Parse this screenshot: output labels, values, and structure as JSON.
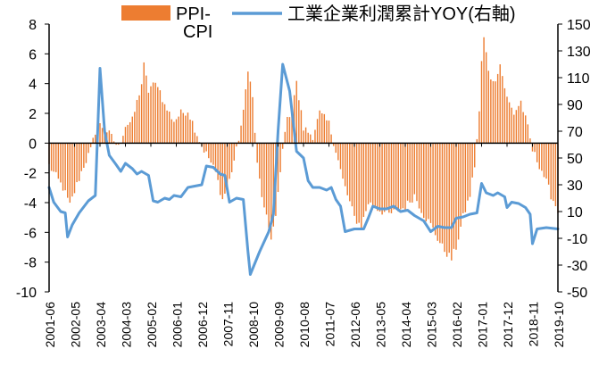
{
  "chart_data": {
    "type": "bar+line",
    "legend": {
      "position": "top",
      "bar_label_line1": "PPI-",
      "bar_label_line2": "CPI",
      "line_label": "工業企業利潤累計YOY(右軸)"
    },
    "left_axis": {
      "min": -10,
      "max": 8,
      "ticks": [
        -10,
        -8,
        -6,
        -4,
        -2,
        0,
        2,
        4,
        6,
        8
      ]
    },
    "right_axis": {
      "min": -50,
      "max": 150,
      "ticks": [
        -50,
        -30,
        -10,
        10,
        30,
        50,
        70,
        90,
        110,
        130,
        150
      ]
    },
    "x_tick_labels": [
      "2001-06",
      "2002-05",
      "2003-04",
      "2004-03",
      "2005-02",
      "2006-01",
      "2006-12",
      "2007-11",
      "2008-10",
      "2009-09",
      "2010-08",
      "2011-07",
      "2012-06",
      "2013-05",
      "2014-04",
      "2015-03",
      "2016-02",
      "2017-01",
      "2017-12",
      "2018-11",
      "2019-10"
    ],
    "x_range": [
      "2001-06",
      "2019-10"
    ],
    "grid": false,
    "colors": {
      "bar": "#ED7D31",
      "line": "#5B9BD5",
      "axis": "#000000"
    },
    "bar_series": {
      "name": "PPI-CPI",
      "anchors": [
        [
          "2001-06",
          -1.5
        ],
        [
          "2001-12",
          -3.0
        ],
        [
          "2002-03",
          -4.2
        ],
        [
          "2002-06",
          -2.8
        ],
        [
          "2002-09",
          -1.5
        ],
        [
          "2002-12",
          -0.5
        ],
        [
          "2003-02",
          0.8
        ],
        [
          "2003-04",
          1.2
        ],
        [
          "2003-06",
          1.0
        ],
        [
          "2003-09",
          0.4
        ],
        [
          "2003-12",
          -0.3
        ],
        [
          "2004-03",
          1.2
        ],
        [
          "2004-06",
          1.5
        ],
        [
          "2004-10",
          4.0
        ],
        [
          "2004-11",
          5.2
        ],
        [
          "2005-01",
          3.5
        ],
        [
          "2005-02",
          3.8
        ],
        [
          "2005-05",
          4.0
        ],
        [
          "2005-08",
          2.5
        ],
        [
          "2005-12",
          1.5
        ],
        [
          "2006-03",
          2.0
        ],
        [
          "2006-06",
          2.2
        ],
        [
          "2006-09",
          1.0
        ],
        [
          "2006-12",
          -0.2
        ],
        [
          "2007-03",
          -1.0
        ],
        [
          "2007-06",
          -2.0
        ],
        [
          "2007-09",
          -3.8
        ],
        [
          "2007-12",
          -2.5
        ],
        [
          "2008-03",
          -0.5
        ],
        [
          "2008-06",
          2.0
        ],
        [
          "2008-08",
          5.1
        ],
        [
          "2008-10",
          3.0
        ],
        [
          "2008-12",
          -1.5
        ],
        [
          "2009-03",
          -4.5
        ],
        [
          "2009-06",
          -6.3
        ],
        [
          "2009-08",
          -5.0
        ],
        [
          "2009-10",
          -2.0
        ],
        [
          "2009-12",
          1.0
        ],
        [
          "2010-03",
          2.5
        ],
        [
          "2010-05",
          4.0
        ],
        [
          "2010-08",
          1.0
        ],
        [
          "2010-12",
          0.5
        ],
        [
          "2011-03",
          2.0
        ],
        [
          "2011-07",
          1.3
        ],
        [
          "2011-10",
          -0.5
        ],
        [
          "2012-01",
          -2.5
        ],
        [
          "2012-06",
          -5.0
        ],
        [
          "2012-09",
          -5.6
        ],
        [
          "2012-12",
          -4.0
        ],
        [
          "2013-05",
          -4.5
        ],
        [
          "2013-09",
          -4.8
        ],
        [
          "2014-01",
          -4.5
        ],
        [
          "2014-04",
          -4.3
        ],
        [
          "2014-08",
          -3.5
        ],
        [
          "2014-12",
          -4.8
        ],
        [
          "2015-03",
          -5.5
        ],
        [
          "2015-08",
          -7.0
        ],
        [
          "2015-12",
          -7.8
        ],
        [
          "2016-02",
          -7.0
        ],
        [
          "2016-05",
          -5.0
        ],
        [
          "2016-08",
          -3.5
        ],
        [
          "2016-10",
          -1.5
        ],
        [
          "2016-12",
          2.0
        ],
        [
          "2017-01",
          5.5
        ],
        [
          "2017-02",
          7.0
        ],
        [
          "2017-04",
          5.0
        ],
        [
          "2017-06",
          4.0
        ],
        [
          "2017-09",
          5.3
        ],
        [
          "2017-12",
          3.0
        ],
        [
          "2018-03",
          2.0
        ],
        [
          "2018-06",
          2.8
        ],
        [
          "2018-09",
          1.0
        ],
        [
          "2018-11",
          -0.5
        ],
        [
          "2019-03",
          -1.8
        ],
        [
          "2019-07",
          -3.5
        ],
        [
          "2019-10",
          -4.5
        ]
      ]
    },
    "line_series": {
      "name": "工業企業利潤累計YOY",
      "axis": "right",
      "points": [
        [
          "2001-06",
          28
        ],
        [
          "2001-08",
          17
        ],
        [
          "2001-11",
          10
        ],
        [
          "2002-01",
          9
        ],
        [
          "2002-02",
          -9
        ],
        [
          "2002-04",
          0
        ],
        [
          "2002-07",
          9
        ],
        [
          "2002-11",
          18
        ],
        [
          "2003-02",
          22
        ],
        [
          "2003-04",
          117
        ],
        [
          "2003-06",
          70
        ],
        [
          "2003-08",
          52
        ],
        [
          "2003-11",
          45
        ],
        [
          "2004-01",
          40
        ],
        [
          "2004-03",
          46
        ],
        [
          "2004-06",
          42
        ],
        [
          "2004-08",
          38
        ],
        [
          "2004-10",
          40
        ],
        [
          "2005-01",
          37
        ],
        [
          "2005-03",
          18
        ],
        [
          "2005-05",
          17
        ],
        [
          "2005-08",
          20
        ],
        [
          "2005-10",
          19
        ],
        [
          "2005-12",
          22
        ],
        [
          "2006-03",
          21
        ],
        [
          "2006-06",
          28
        ],
        [
          "2006-09",
          29
        ],
        [
          "2006-12",
          30
        ],
        [
          "2007-02",
          44
        ],
        [
          "2007-05",
          43
        ],
        [
          "2007-08",
          38
        ],
        [
          "2007-10",
          37
        ],
        [
          "2007-12",
          17
        ],
        [
          "2008-03",
          20
        ],
        [
          "2008-06",
          19
        ],
        [
          "2008-08",
          -20
        ],
        [
          "2008-09",
          -37
        ],
        [
          "2009-01",
          -20
        ],
        [
          "2009-05",
          -5
        ],
        [
          "2009-07",
          8
        ],
        [
          "2009-09",
          70
        ],
        [
          "2009-11",
          120
        ],
        [
          "2010-02",
          100
        ],
        [
          "2010-05",
          55
        ],
        [
          "2010-08",
          50
        ],
        [
          "2010-10",
          33
        ],
        [
          "2010-12",
          28
        ],
        [
          "2011-03",
          28
        ],
        [
          "2011-06",
          26
        ],
        [
          "2011-08",
          28
        ],
        [
          "2011-10",
          19
        ],
        [
          "2011-12",
          14
        ],
        [
          "2012-02",
          -5
        ],
        [
          "2012-06",
          -3
        ],
        [
          "2012-10",
          -3
        ],
        [
          "2012-12",
          5
        ],
        [
          "2013-02",
          14
        ],
        [
          "2013-05",
          12
        ],
        [
          "2013-08",
          12
        ],
        [
          "2013-11",
          14
        ],
        [
          "2014-02",
          10
        ],
        [
          "2014-05",
          11
        ],
        [
          "2014-08",
          7
        ],
        [
          "2014-12",
          3
        ],
        [
          "2015-03",
          -5
        ],
        [
          "2015-06",
          -1
        ],
        [
          "2015-09",
          -2
        ],
        [
          "2015-12",
          -2
        ],
        [
          "2016-02",
          5
        ],
        [
          "2016-05",
          6
        ],
        [
          "2016-08",
          8
        ],
        [
          "2016-11",
          9
        ],
        [
          "2017-01",
          31
        ],
        [
          "2017-03",
          24
        ],
        [
          "2017-06",
          22
        ],
        [
          "2017-08",
          24
        ],
        [
          "2017-11",
          21
        ],
        [
          "2017-12",
          13
        ],
        [
          "2018-02",
          17
        ],
        [
          "2018-05",
          16
        ],
        [
          "2018-08",
          13
        ],
        [
          "2018-10",
          8
        ],
        [
          "2018-11",
          -14
        ],
        [
          "2019-01",
          -3
        ],
        [
          "2019-05",
          -2
        ],
        [
          "2019-10",
          -3
        ]
      ]
    }
  }
}
